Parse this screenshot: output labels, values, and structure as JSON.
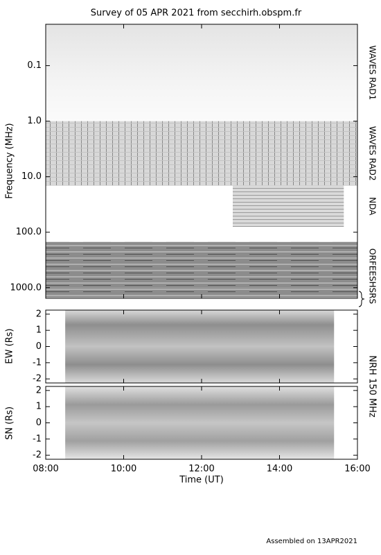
{
  "chart_data": [
    {
      "type": "spectrogram",
      "title": "Survey of 05 APR 2021 from secchirh.obspm.fr",
      "ylabel": "Frequency (MHz)",
      "log_y": true,
      "y_inverted": true,
      "ylim": [
        0.018,
        1550
      ],
      "yticks": [
        0.1,
        {
          "value": 1,
          "label": "1.0"
        },
        {
          "value": 10,
          "label": "10.0"
        },
        {
          "value": 100,
          "label": "100.0"
        },
        {
          "value": 1000,
          "label": "1000.0"
        }
      ],
      "xlim": [
        8,
        16
      ],
      "series": [
        {
          "name": "WAVES RAD1",
          "time": [
            8,
            16
          ],
          "freq": [
            0.018,
            1
          ]
        },
        {
          "name": "WAVES RAD2",
          "time": [
            8,
            16
          ],
          "freq": [
            1,
            14.5
          ]
        },
        {
          "name": "NDA",
          "time": [
            12.8,
            15.65
          ],
          "freq": [
            14.5,
            80
          ]
        },
        {
          "name": "ORFEES",
          "time": [
            8,
            16
          ],
          "freq": [
            150,
            1000
          ]
        },
        {
          "name": "HSRS",
          "time": [
            8,
            16
          ],
          "freq": [
            1000,
            1500
          ]
        }
      ]
    },
    {
      "type": "image",
      "ylabel": "EW (Rs)",
      "label": "NRH 150 MHz",
      "ylim": [
        -2.25,
        2.25
      ],
      "yticks": [
        -2,
        -1,
        0,
        1,
        2
      ],
      "xlim": [
        8,
        16
      ],
      "time": [
        8.5,
        15.4
      ]
    },
    {
      "type": "image",
      "ylabel": "SN (Rs)",
      "ylim": [
        -2.25,
        2.25
      ],
      "yticks": [
        -2,
        -1,
        0,
        1,
        2
      ],
      "xlim": [
        8,
        16
      ],
      "time": [
        8.5,
        15.4
      ],
      "xlabel": "Time (UT)",
      "xticks": [
        {
          "value": 8,
          "label": "08:00"
        },
        {
          "value": 10,
          "label": "10:00"
        },
        {
          "value": 12,
          "label": "12:00"
        },
        {
          "value": 14,
          "label": "14:00"
        },
        {
          "value": 16,
          "label": "16:00"
        }
      ]
    }
  ],
  "footer": "Assembled on 13APR2021"
}
